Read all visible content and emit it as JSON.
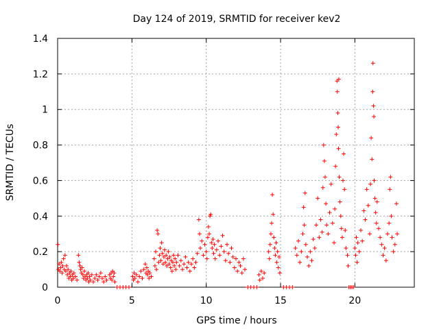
{
  "chart_data": {
    "type": "scatter",
    "title": "Day 124 of 2019, SRMTID for receiver kev2",
    "xlabel": "GPS time / hours",
    "ylabel": "SRMTID / TECUs",
    "xlim": [
      0,
      24
    ],
    "ylim": [
      0,
      1.4
    ],
    "x_ticks": [
      0,
      5,
      10,
      15,
      20
    ],
    "y_ticks": [
      0,
      0.2,
      0.4,
      0.6,
      0.8,
      1,
      1.2,
      1.4
    ],
    "x_tick_labels": [
      "0",
      "5",
      "10",
      "15",
      "20"
    ],
    "y_tick_labels": [
      "0",
      "0.2",
      "0.4",
      "0.6",
      "0.8",
      "1",
      "1.2",
      "1.4"
    ],
    "grid": true,
    "marker": "plus",
    "color": "#ff0000",
    "series": [
      {
        "name": "SRMTID",
        "points": [
          [
            0.02,
            0.24
          ],
          [
            0.05,
            0.1
          ],
          [
            0.1,
            0.13
          ],
          [
            0.15,
            0.09
          ],
          [
            0.2,
            0.11
          ],
          [
            0.25,
            0.14
          ],
          [
            0.3,
            0.08
          ],
          [
            0.35,
            0.12
          ],
          [
            0.4,
            0.16
          ],
          [
            0.45,
            0.1
          ],
          [
            0.5,
            0.18
          ],
          [
            0.55,
            0.09
          ],
          [
            0.6,
            0.12
          ],
          [
            0.65,
            0.07
          ],
          [
            0.7,
            0.1
          ],
          [
            0.75,
            0.05
          ],
          [
            0.8,
            0.08
          ],
          [
            0.85,
            0.06
          ],
          [
            0.9,
            0.09
          ],
          [
            0.95,
            0.04
          ],
          [
            1.0,
            0.07
          ],
          [
            1.05,
            0.05
          ],
          [
            1.1,
            0.08
          ],
          [
            1.2,
            0.06
          ],
          [
            1.3,
            0.04
          ],
          [
            1.4,
            0.18
          ],
          [
            1.45,
            0.14
          ],
          [
            1.5,
            0.12
          ],
          [
            1.55,
            0.1
          ],
          [
            1.6,
            0.08
          ],
          [
            1.65,
            0.11
          ],
          [
            1.7,
            0.07
          ],
          [
            1.75,
            0.05
          ],
          [
            1.8,
            0.09
          ],
          [
            1.85,
            0.06
          ],
          [
            1.9,
            0.04
          ],
          [
            1.95,
            0.07
          ],
          [
            2.0,
            0.05
          ],
          [
            2.05,
            0.08
          ],
          [
            2.1,
            0.03
          ],
          [
            2.15,
            0.06
          ],
          [
            2.2,
            0.04
          ],
          [
            2.3,
            0.07
          ],
          [
            2.4,
            0.03
          ],
          [
            2.5,
            0.05
          ],
          [
            2.6,
            0.07
          ],
          [
            2.7,
            0.04
          ],
          [
            2.8,
            0.06
          ],
          [
            2.9,
            0.08
          ],
          [
            3.0,
            0.05
          ],
          [
            3.1,
            0.03
          ],
          [
            3.2,
            0.06
          ],
          [
            3.3,
            0.04
          ],
          [
            3.5,
            0.07
          ],
          [
            3.55,
            0.05
          ],
          [
            3.6,
            0.08
          ],
          [
            3.65,
            0.04
          ],
          [
            3.7,
            0.09
          ],
          [
            3.75,
            0.06
          ],
          [
            3.8,
            0.08
          ],
          [
            3.85,
            0.03
          ],
          [
            4.0,
            0
          ],
          [
            4.2,
            0
          ],
          [
            4.4,
            0
          ],
          [
            4.6,
            0
          ],
          [
            4.8,
            0
          ],
          [
            5.05,
            0.06
          ],
          [
            5.1,
            0.04
          ],
          [
            5.15,
            0.08
          ],
          [
            5.2,
            0.05
          ],
          [
            5.3,
            0.07
          ],
          [
            5.4,
            0.03
          ],
          [
            5.5,
            0.06
          ],
          [
            5.6,
            0.09
          ],
          [
            5.7,
            0.05
          ],
          [
            5.8,
            0.1
          ],
          [
            5.9,
            0.13
          ],
          [
            5.95,
            0.08
          ],
          [
            6.0,
            0.11
          ],
          [
            6.05,
            0.07
          ],
          [
            6.1,
            0.09
          ],
          [
            6.15,
            0.05
          ],
          [
            6.2,
            0.08
          ],
          [
            6.3,
            0.06
          ],
          [
            6.5,
            0.16
          ],
          [
            6.55,
            0.12
          ],
          [
            6.6,
            0.2
          ],
          [
            6.65,
            0.1
          ],
          [
            6.7,
            0.32
          ],
          [
            6.75,
            0.3
          ],
          [
            6.8,
            0.14
          ],
          [
            6.85,
            0.18
          ],
          [
            6.9,
            0.22
          ],
          [
            6.95,
            0.15
          ],
          [
            7.0,
            0.25
          ],
          [
            7.05,
            0.19
          ],
          [
            7.1,
            0.13
          ],
          [
            7.15,
            0.17
          ],
          [
            7.2,
            0.21
          ],
          [
            7.25,
            0.14
          ],
          [
            7.3,
            0.18
          ],
          [
            7.35,
            0.12
          ],
          [
            7.4,
            0.16
          ],
          [
            7.45,
            0.2
          ],
          [
            7.5,
            0.13
          ],
          [
            7.55,
            0.17
          ],
          [
            7.6,
            0.11
          ],
          [
            7.65,
            0.15
          ],
          [
            7.7,
            0.09
          ],
          [
            7.75,
            0.14
          ],
          [
            7.8,
            0.18
          ],
          [
            7.85,
            0.12
          ],
          [
            7.9,
            0.16
          ],
          [
            7.95,
            0.1
          ],
          [
            8.0,
            0.14
          ],
          [
            8.1,
            0.18
          ],
          [
            8.2,
            0.12
          ],
          [
            8.3,
            0.15
          ],
          [
            8.4,
            0.1
          ],
          [
            8.5,
            0.13
          ],
          [
            8.6,
            0.17
          ],
          [
            8.7,
            0.11
          ],
          [
            8.8,
            0.14
          ],
          [
            8.9,
            0.09
          ],
          [
            9.0,
            0.13
          ],
          [
            9.1,
            0.16
          ],
          [
            9.2,
            0.11
          ],
          [
            9.3,
            0.14
          ],
          [
            9.4,
            0.19
          ],
          [
            9.5,
            0.38
          ],
          [
            9.55,
            0.3
          ],
          [
            9.6,
            0.22
          ],
          [
            9.7,
            0.26
          ],
          [
            9.8,
            0.18
          ],
          [
            9.9,
            0.24
          ],
          [
            10.0,
            0.2
          ],
          [
            10.05,
            0.16
          ],
          [
            10.1,
            0.28
          ],
          [
            10.15,
            0.34
          ],
          [
            10.2,
            0.3
          ],
          [
            10.25,
            0.4
          ],
          [
            10.3,
            0.41
          ],
          [
            10.35,
            0.25
          ],
          [
            10.4,
            0.22
          ],
          [
            10.45,
            0.27
          ],
          [
            10.5,
            0.19
          ],
          [
            10.55,
            0.24
          ],
          [
            10.6,
            0.16
          ],
          [
            10.7,
            0.21
          ],
          [
            10.8,
            0.26
          ],
          [
            10.9,
            0.18
          ],
          [
            11.0,
            0.23
          ],
          [
            11.1,
            0.29
          ],
          [
            11.2,
            0.2
          ],
          [
            11.3,
            0.15
          ],
          [
            11.4,
            0.24
          ],
          [
            11.5,
            0.19
          ],
          [
            11.6,
            0.14
          ],
          [
            11.7,
            0.22
          ],
          [
            11.8,
            0.17
          ],
          [
            11.9,
            0.11
          ],
          [
            12.0,
            0.16
          ],
          [
            12.1,
            0.09
          ],
          [
            12.2,
            0.14
          ],
          [
            12.3,
            0.12
          ],
          [
            12.4,
            0.08
          ],
          [
            12.5,
            0.16
          ],
          [
            12.6,
            0.1
          ],
          [
            12.8,
            0
          ],
          [
            13.0,
            0
          ],
          [
            13.2,
            0
          ],
          [
            13.4,
            0
          ],
          [
            13.55,
            0.07
          ],
          [
            13.6,
            0.04
          ],
          [
            13.7,
            0.09
          ],
          [
            13.8,
            0.05
          ],
          [
            13.9,
            0.08
          ],
          [
            14.2,
            0.2
          ],
          [
            14.25,
            0.16
          ],
          [
            14.3,
            0.24
          ],
          [
            14.35,
            0.3
          ],
          [
            14.4,
            0.36
          ],
          [
            14.45,
            0.52
          ],
          [
            14.5,
            0.41
          ],
          [
            14.55,
            0.28
          ],
          [
            14.6,
            0.22
          ],
          [
            14.65,
            0.18
          ],
          [
            14.7,
            0.25
          ],
          [
            14.75,
            0.14
          ],
          [
            14.8,
            0.2
          ],
          [
            14.85,
            0.11
          ],
          [
            14.9,
            0.17
          ],
          [
            14.95,
            0.08
          ],
          [
            15.2,
            0
          ],
          [
            15.4,
            0
          ],
          [
            15.6,
            0
          ],
          [
            15.8,
            0
          ],
          [
            16.0,
            0.22
          ],
          [
            16.1,
            0.18
          ],
          [
            16.2,
            0.26
          ],
          [
            16.3,
            0.14
          ],
          [
            16.4,
            0.2
          ],
          [
            16.5,
            0.3
          ],
          [
            16.55,
            0.45
          ],
          [
            16.6,
            0.35
          ],
          [
            16.65,
            0.53
          ],
          [
            16.7,
            0.24
          ],
          [
            16.8,
            0.17
          ],
          [
            16.9,
            0.12
          ],
          [
            17.0,
            0.2
          ],
          [
            17.1,
            0.15
          ],
          [
            17.2,
            0.27
          ],
          [
            17.3,
            0.22
          ],
          [
            17.4,
            0.35
          ],
          [
            17.5,
            0.5
          ],
          [
            17.6,
            0.28
          ],
          [
            17.7,
            0.38
          ],
          [
            17.8,
            0.31
          ],
          [
            17.85,
            0.56
          ],
          [
            17.9,
            0.8
          ],
          [
            17.95,
            0.71
          ],
          [
            18.0,
            0.62
          ],
          [
            18.05,
            0.47
          ],
          [
            18.1,
            0.35
          ],
          [
            18.2,
            0.3
          ],
          [
            18.3,
            0.42
          ],
          [
            18.4,
            0.58
          ],
          [
            18.5,
            0.36
          ],
          [
            18.6,
            0.25
          ],
          [
            18.65,
            0.44
          ],
          [
            18.7,
            0.68
          ],
          [
            18.75,
            0.86
          ],
          [
            18.8,
            1.16
          ],
          [
            18.82,
            1.1
          ],
          [
            18.85,
            0.98
          ],
          [
            18.88,
            0.9
          ],
          [
            18.9,
            0.78
          ],
          [
            18.92,
            1.17
          ],
          [
            18.95,
            0.62
          ],
          [
            19.0,
            0.48
          ],
          [
            19.05,
            0.4
          ],
          [
            19.1,
            0.33
          ],
          [
            19.15,
            0.28
          ],
          [
            19.2,
            0.6
          ],
          [
            19.25,
            0.75
          ],
          [
            19.3,
            0.55
          ],
          [
            19.35,
            0.32
          ],
          [
            19.4,
            0.22
          ],
          [
            19.5,
            0.18
          ],
          [
            19.55,
            0.12
          ],
          [
            19.6,
            0
          ],
          [
            19.7,
            0
          ],
          [
            19.8,
            0
          ],
          [
            19.9,
            0
          ],
          [
            20.0,
            0.22
          ],
          [
            20.05,
            0.18
          ],
          [
            20.1,
            0.28
          ],
          [
            20.15,
            0.14
          ],
          [
            20.2,
            0.25
          ],
          [
            20.3,
            0.2
          ],
          [
            20.4,
            0.32
          ],
          [
            20.5,
            0.26
          ],
          [
            20.6,
            0.43
          ],
          [
            20.7,
            0.38
          ],
          [
            20.8,
            0.55
          ],
          [
            20.9,
            0.46
          ],
          [
            21.0,
            0.3
          ],
          [
            21.05,
            0.58
          ],
          [
            21.1,
            0.84
          ],
          [
            21.15,
            0.72
          ],
          [
            21.2,
            1.1
          ],
          [
            21.22,
            1.26
          ],
          [
            21.25,
            1.02
          ],
          [
            21.28,
            0.96
          ],
          [
            21.3,
            0.6
          ],
          [
            21.35,
            0.5
          ],
          [
            21.4,
            0.42
          ],
          [
            21.45,
            0.36
          ],
          [
            21.5,
            0.48
          ],
          [
            21.6,
            0.33
          ],
          [
            21.7,
            0.28
          ],
          [
            21.8,
            0.24
          ],
          [
            21.9,
            0.18
          ],
          [
            22.0,
            0.22
          ],
          [
            22.1,
            0.15
          ],
          [
            22.2,
            0.3
          ],
          [
            22.3,
            0.36
          ],
          [
            22.35,
            0.55
          ],
          [
            22.4,
            0.62
          ],
          [
            22.45,
            0.4
          ],
          [
            22.5,
            0.28
          ],
          [
            22.6,
            0.2
          ],
          [
            22.7,
            0.24
          ],
          [
            22.8,
            0.47
          ],
          [
            22.85,
            0.3
          ]
        ]
      }
    ]
  }
}
